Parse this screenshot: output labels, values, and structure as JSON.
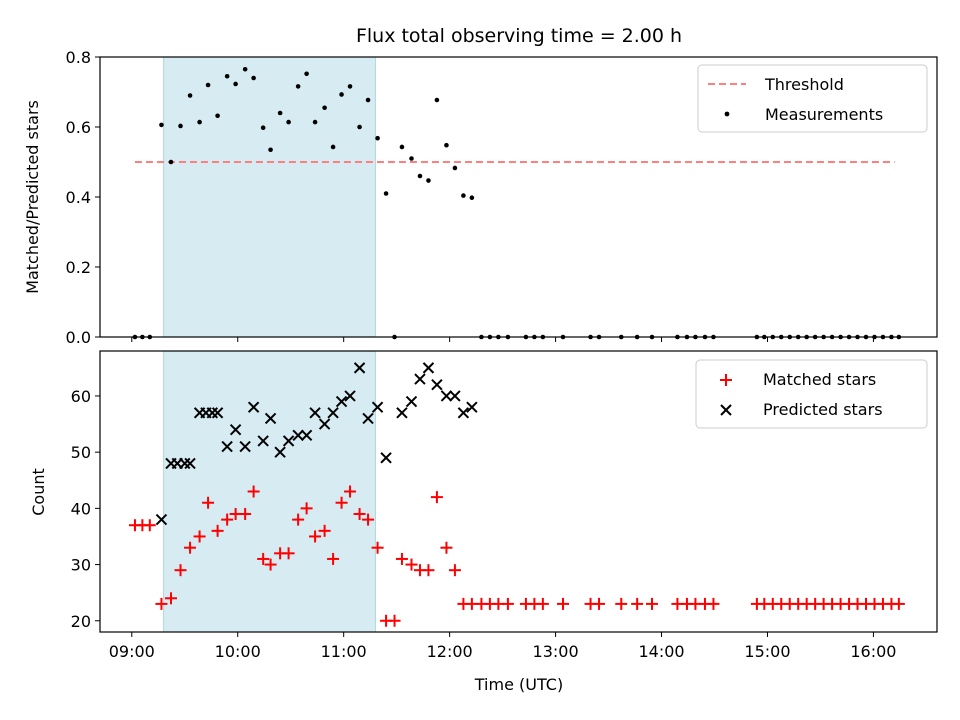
{
  "chart_data": {
    "title": "Flux total observing time = 2.00 h",
    "shaded_interval": {
      "start": 9.3,
      "end": 11.3,
      "color": "#add8e6"
    },
    "top": {
      "type": "scatter",
      "ylabel": "Matched/Predicted stars",
      "ylim": [
        0,
        0.8
      ],
      "yticks": [
        0.0,
        0.2,
        0.4,
        0.6,
        0.8
      ],
      "ytick_labels": [
        "0.0",
        "0.2",
        "0.4",
        "0.6",
        "0.8"
      ],
      "threshold": {
        "value": 0.5,
        "x_start": 9.03,
        "x_end": 16.2,
        "color": "#ff7f7f"
      },
      "legend": {
        "threshold_label": "Threshold",
        "measurements_label": "Measurements",
        "position": "top-right"
      },
      "measurements": [
        [
          9.03,
          0
        ],
        [
          9.1,
          0
        ],
        [
          9.17,
          0
        ],
        [
          9.28,
          0.606
        ],
        [
          9.37,
          0.5
        ],
        [
          9.46,
          0.603
        ],
        [
          9.55,
          0.69
        ],
        [
          9.64,
          0.614
        ],
        [
          9.72,
          0.72
        ],
        [
          9.81,
          0.632
        ],
        [
          9.9,
          0.745
        ],
        [
          9.98,
          0.723
        ],
        [
          10.07,
          0.765
        ],
        [
          10.15,
          0.74
        ],
        [
          10.24,
          0.598
        ],
        [
          10.31,
          0.535
        ],
        [
          10.4,
          0.64
        ],
        [
          10.48,
          0.614
        ],
        [
          10.57,
          0.716
        ],
        [
          10.65,
          0.752
        ],
        [
          10.73,
          0.614
        ],
        [
          10.82,
          0.655
        ],
        [
          10.9,
          0.543
        ],
        [
          10.98,
          0.693
        ],
        [
          11.06,
          0.716
        ],
        [
          11.15,
          0.6
        ],
        [
          11.23,
          0.677
        ],
        [
          11.32,
          0.568
        ],
        [
          11.4,
          0.41
        ],
        [
          11.48,
          0
        ],
        [
          11.55,
          0.543
        ],
        [
          11.64,
          0.51
        ],
        [
          11.72,
          0.46
        ],
        [
          11.8,
          0.447
        ],
        [
          11.88,
          0.677
        ],
        [
          11.97,
          0.548
        ],
        [
          12.05,
          0.483
        ],
        [
          12.13,
          0.404
        ],
        [
          12.21,
          0.398
        ],
        [
          12.3,
          0
        ],
        [
          12.38,
          0
        ],
        [
          12.46,
          0
        ],
        [
          12.55,
          0
        ],
        [
          12.72,
          0
        ],
        [
          12.8,
          0
        ],
        [
          12.88,
          0
        ],
        [
          13.07,
          0
        ],
        [
          13.33,
          0
        ],
        [
          13.41,
          0
        ],
        [
          13.62,
          0
        ],
        [
          13.77,
          0
        ],
        [
          13.91,
          0
        ],
        [
          14.15,
          0
        ],
        [
          14.24,
          0
        ],
        [
          14.32,
          0
        ],
        [
          14.41,
          0
        ],
        [
          14.49,
          0
        ],
        [
          14.9,
          0
        ],
        [
          14.97,
          0
        ],
        [
          15.05,
          0
        ],
        [
          15.13,
          0
        ],
        [
          15.21,
          0
        ],
        [
          15.29,
          0
        ],
        [
          15.37,
          0
        ],
        [
          15.45,
          0
        ],
        [
          15.53,
          0
        ],
        [
          15.61,
          0
        ],
        [
          15.69,
          0
        ],
        [
          15.77,
          0
        ],
        [
          15.85,
          0
        ],
        [
          15.93,
          0
        ],
        [
          16.01,
          0
        ],
        [
          16.09,
          0
        ],
        [
          16.17,
          0
        ],
        [
          16.24,
          0
        ]
      ]
    },
    "bottom": {
      "type": "scatter",
      "ylabel": "Count",
      "xlabel": "Time (UTC)",
      "ylim": [
        18,
        68
      ],
      "yticks": [
        20,
        30,
        40,
        50,
        60
      ],
      "ytick_labels": [
        "20",
        "30",
        "40",
        "50",
        "60"
      ],
      "legend": {
        "matched_label": "Matched stars",
        "predicted_label": "Predicted stars",
        "position": "top-right"
      },
      "matched": [
        [
          9.03,
          37
        ],
        [
          9.1,
          37
        ],
        [
          9.17,
          37
        ],
        [
          9.28,
          23
        ],
        [
          9.37,
          24
        ],
        [
          9.46,
          29
        ],
        [
          9.55,
          33
        ],
        [
          9.64,
          35
        ],
        [
          9.72,
          41
        ],
        [
          9.81,
          36
        ],
        [
          9.9,
          38
        ],
        [
          9.98,
          39
        ],
        [
          10.07,
          39
        ],
        [
          10.15,
          43
        ],
        [
          10.24,
          31
        ],
        [
          10.31,
          30
        ],
        [
          10.4,
          32
        ],
        [
          10.48,
          32
        ],
        [
          10.57,
          38
        ],
        [
          10.65,
          40
        ],
        [
          10.73,
          35
        ],
        [
          10.82,
          36
        ],
        [
          10.9,
          31
        ],
        [
          10.98,
          41
        ],
        [
          11.06,
          43
        ],
        [
          11.15,
          39
        ],
        [
          11.23,
          38
        ],
        [
          11.32,
          33
        ],
        [
          11.4,
          20
        ],
        [
          11.48,
          20
        ],
        [
          11.55,
          31
        ],
        [
          11.64,
          30
        ],
        [
          11.72,
          29
        ],
        [
          11.8,
          29
        ],
        [
          11.88,
          42
        ],
        [
          11.97,
          33
        ],
        [
          12.05,
          29
        ],
        [
          12.13,
          23
        ],
        [
          12.21,
          23
        ],
        [
          12.3,
          23
        ],
        [
          12.38,
          23
        ],
        [
          12.46,
          23
        ],
        [
          12.55,
          23
        ],
        [
          12.72,
          23
        ],
        [
          12.8,
          23
        ],
        [
          12.88,
          23
        ],
        [
          13.07,
          23
        ],
        [
          13.33,
          23
        ],
        [
          13.41,
          23
        ],
        [
          13.62,
          23
        ],
        [
          13.77,
          23
        ],
        [
          13.91,
          23
        ],
        [
          14.15,
          23
        ],
        [
          14.24,
          23
        ],
        [
          14.32,
          23
        ],
        [
          14.41,
          23
        ],
        [
          14.49,
          23
        ],
        [
          14.9,
          23
        ],
        [
          14.97,
          23
        ],
        [
          15.05,
          23
        ],
        [
          15.13,
          23
        ],
        [
          15.21,
          23
        ],
        [
          15.29,
          23
        ],
        [
          15.37,
          23
        ],
        [
          15.45,
          23
        ],
        [
          15.53,
          23
        ],
        [
          15.61,
          23
        ],
        [
          15.69,
          23
        ],
        [
          15.77,
          23
        ],
        [
          15.85,
          23
        ],
        [
          15.93,
          23
        ],
        [
          16.01,
          23
        ],
        [
          16.09,
          23
        ],
        [
          16.17,
          23
        ],
        [
          16.24,
          23
        ]
      ],
      "predicted": [
        [
          9.28,
          38
        ],
        [
          9.37,
          48
        ],
        [
          9.43,
          48
        ],
        [
          9.5,
          48
        ],
        [
          9.55,
          48
        ],
        [
          9.64,
          57
        ],
        [
          9.7,
          57
        ],
        [
          9.76,
          57
        ],
        [
          9.81,
          57
        ],
        [
          9.9,
          51
        ],
        [
          9.98,
          54
        ],
        [
          10.07,
          51
        ],
        [
          10.15,
          58
        ],
        [
          10.24,
          52
        ],
        [
          10.31,
          56
        ],
        [
          10.4,
          50
        ],
        [
          10.48,
          52
        ],
        [
          10.57,
          53
        ],
        [
          10.65,
          53
        ],
        [
          10.73,
          57
        ],
        [
          10.82,
          55
        ],
        [
          10.9,
          57
        ],
        [
          10.98,
          59
        ],
        [
          11.06,
          60
        ],
        [
          11.15,
          65
        ],
        [
          11.23,
          56
        ],
        [
          11.32,
          58
        ],
        [
          11.4,
          49
        ],
        [
          11.55,
          57
        ],
        [
          11.64,
          59
        ],
        [
          11.72,
          63
        ],
        [
          11.8,
          65
        ],
        [
          11.88,
          62
        ],
        [
          11.97,
          60
        ],
        [
          12.05,
          60
        ],
        [
          12.13,
          57
        ],
        [
          12.21,
          58
        ]
      ]
    },
    "x_axis": {
      "xlim": [
        8.7,
        16.6
      ],
      "ticks": [
        9,
        10,
        11,
        12,
        13,
        14,
        15,
        16
      ],
      "tick_labels": [
        "09:00",
        "10:00",
        "11:00",
        "12:00",
        "13:00",
        "14:00",
        "15:00",
        "16:00"
      ]
    }
  }
}
